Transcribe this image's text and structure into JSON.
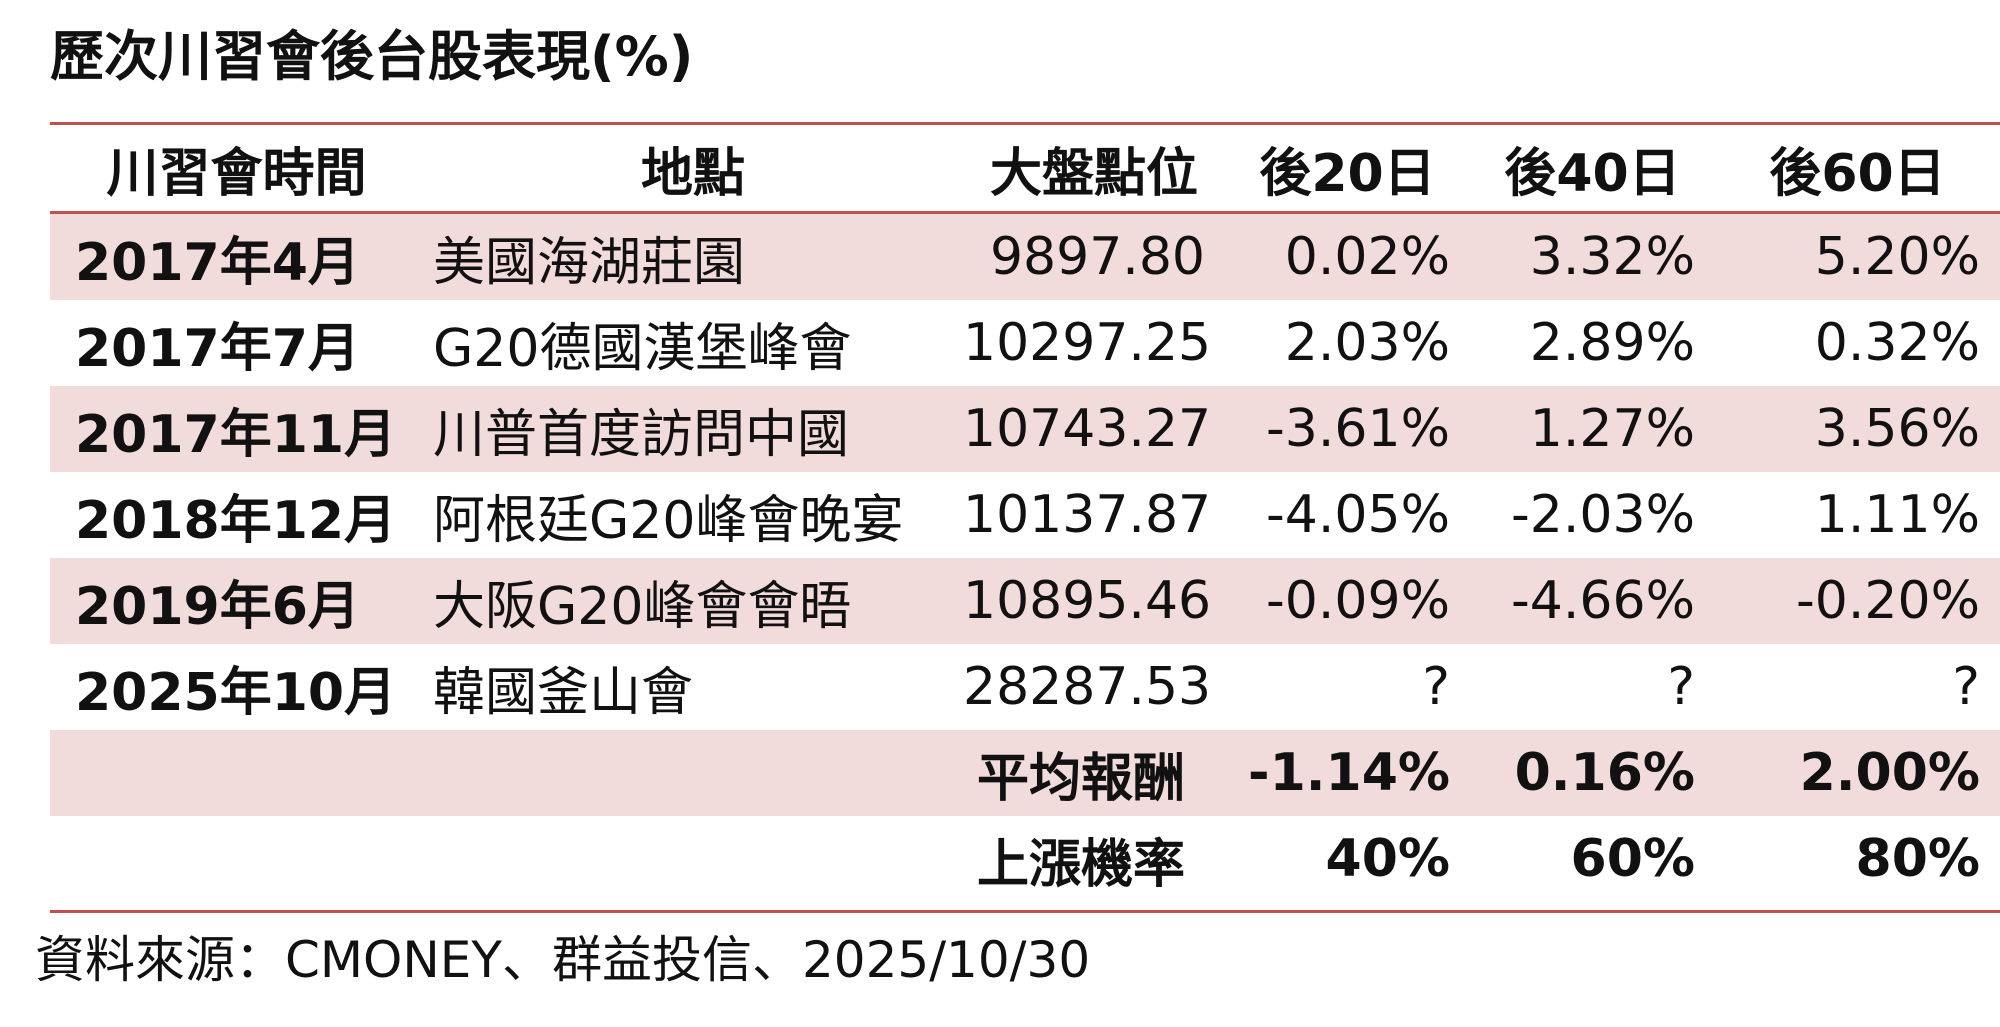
{
  "chart_data": {
    "type": "table",
    "title": "歷次川習會後台股表現(%)",
    "columns": [
      "川習會時間",
      "地點",
      "大盤點位",
      "後20日",
      "後40日",
      "後60日"
    ],
    "rows": [
      {
        "date": "2017年4月",
        "place": "美國海湖莊園",
        "index": "9897.80",
        "d20": "0.02%",
        "d40": "3.32%",
        "d60": "5.20%"
      },
      {
        "date": "2017年7月",
        "place": "G20德國漢堡峰會",
        "index": "10297.25",
        "d20": "2.03%",
        "d40": "2.89%",
        "d60": "0.32%"
      },
      {
        "date": "2017年11月",
        "place": "川普首度訪問中國",
        "index": "10743.27",
        "d20": "-3.61%",
        "d40": "1.27%",
        "d60": "3.56%"
      },
      {
        "date": "2018年12月",
        "place": "阿根廷G20峰會晚宴",
        "index": "10137.87",
        "d20": "-4.05%",
        "d40": "-2.03%",
        "d60": "1.11%"
      },
      {
        "date": "2019年6月",
        "place": "大阪G20峰會會晤",
        "index": "10895.46",
        "d20": "-0.09%",
        "d40": "-4.66%",
        "d60": "-0.20%"
      },
      {
        "date": "2025年10月",
        "place": "韓國釜山會",
        "index": "28287.53",
        "d20": "?",
        "d40": "?",
        "d60": "?"
      }
    ],
    "summary": [
      {
        "label": "平均報酬",
        "d20": "-1.14%",
        "d40": "0.16%",
        "d60": "2.00%"
      },
      {
        "label": "上漲機率",
        "d20": "40%",
        "d40": "60%",
        "d60": "80%"
      }
    ],
    "source": "資料來源：CMONEY、群益投信、2025/10/30"
  },
  "colors": {
    "rule": "#c0504d",
    "row_shade": "#f2dcdb",
    "text": "#111111"
  }
}
